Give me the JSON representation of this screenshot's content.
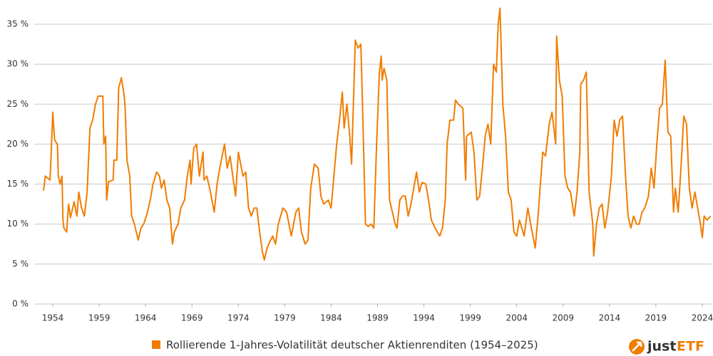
{
  "chart_data": {
    "type": "line",
    "x": [
      1953.0,
      1953.2,
      1953.7,
      1953.8,
      1954.0,
      1954.2,
      1954.5,
      1954.6,
      1954.8,
      1955.0,
      1955.1,
      1955.2,
      1955.5,
      1955.7,
      1955.9,
      1956.3,
      1956.6,
      1956.8,
      1957.1,
      1957.4,
      1957.7,
      1958.0,
      1958.3,
      1958.6,
      1958.9,
      1959.4,
      1959.5,
      1959.7,
      1959.8,
      1960.0,
      1960.5,
      1960.6,
      1960.9,
      1961.1,
      1961.4,
      1961.7,
      1961.8,
      1962.0,
      1962.3,
      1962.5,
      1962.8,
      1963.2,
      1963.5,
      1963.8,
      1964.2,
      1964.5,
      1964.8,
      1965.2,
      1965.5,
      1965.7,
      1966.0,
      1966.3,
      1966.6,
      1966.9,
      1967.1,
      1967.5,
      1967.8,
      1968.2,
      1968.5,
      1968.8,
      1968.9,
      1969.2,
      1969.5,
      1969.8,
      1970.2,
      1970.3,
      1970.6,
      1970.9,
      1971.4,
      1971.7,
      1972.0,
      1972.5,
      1972.8,
      1973.1,
      1973.4,
      1973.7,
      1974.0,
      1974.5,
      1974.8,
      1975.1,
      1975.4,
      1975.7,
      1976.0,
      1976.3,
      1976.6,
      1976.8,
      1977.1,
      1977.4,
      1977.7,
      1978.0,
      1978.3,
      1978.8,
      1979.2,
      1979.7,
      1980.2,
      1980.5,
      1980.8,
      1981.2,
      1981.5,
      1981.8,
      1982.2,
      1982.6,
      1982.9,
      1983.2,
      1983.7,
      1984.0,
      1984.3,
      1984.6,
      1984.9,
      1985.2,
      1985.4,
      1985.7,
      1986.0,
      1986.2,
      1986.5,
      1986.6,
      1986.9,
      1987.2,
      1987.4,
      1987.7,
      1988.0,
      1988.3,
      1988.6,
      1988.9,
      1989.2,
      1989.4,
      1989.5,
      1989.7,
      1990.0,
      1990.3,
      1990.6,
      1990.9,
      1991.1,
      1991.4,
      1991.7,
      1992.0,
      1992.3,
      1992.6,
      1992.9,
      1993.2,
      1993.5,
      1993.8,
      1994.2,
      1994.5,
      1994.8,
      1995.2,
      1995.7,
      1996.0,
      1996.3,
      1996.5,
      1996.8,
      1997.2,
      1997.4,
      1997.7,
      1998.2,
      1998.5,
      1998.6,
      1999.1,
      1999.4,
      1999.7,
      2000.0,
      2000.3,
      2000.6,
      2000.9,
      2001.2,
      2001.5,
      2001.8,
      2002.0,
      2002.2,
      2002.5,
      2002.8,
      2003.1,
      2003.4,
      2003.7,
      2004.0,
      2004.3,
      2004.8,
      2005.2,
      2005.5,
      2006.0,
      2006.3,
      2006.8,
      2007.1,
      2007.5,
      2007.8,
      2008.2,
      2008.3,
      2008.6,
      2008.9,
      2009.2,
      2009.5,
      2009.8,
      2010.2,
      2010.5,
      2010.8,
      2010.9,
      2011.2,
      2011.5,
      2011.8,
      2012.2,
      2012.3,
      2012.6,
      2012.9,
      2013.2,
      2013.5,
      2013.8,
      2014.2,
      2014.5,
      2014.8,
      2015.1,
      2015.4,
      2015.7,
      2016.0,
      2016.3,
      2016.6,
      2016.9,
      2017.2,
      2017.5,
      2017.8,
      2018.2,
      2018.5,
      2018.8,
      2019.1,
      2019.4,
      2019.7,
      2020.0,
      2020.3,
      2020.6,
      2020.9,
      2021.1,
      2021.4,
      2021.7,
      2022.0,
      2022.3,
      2022.6,
      2022.9,
      2023.2,
      2023.5,
      2023.8,
      2024.0,
      2024.2,
      2024.5,
      2024.9
    ],
    "series": [
      {
        "name": "Rollierende 1-Jahres-Volatilität deutscher Aktienrenditen (1954–2025)",
        "color": "#f07d00",
        "values": [
          14.2,
          16,
          15.5,
          18,
          24,
          20.5,
          20,
          16,
          15,
          16,
          10.5,
          9.5,
          9,
          12.5,
          10.8,
          12.8,
          11,
          14,
          12,
          11,
          14,
          22,
          23,
          25,
          26,
          26,
          20,
          21,
          13,
          15.3,
          15.5,
          18,
          18,
          27,
          28.3,
          26,
          24.5,
          18,
          16,
          11,
          10,
          8,
          9.5,
          10,
          11.5,
          13,
          15,
          16.5,
          16,
          14.5,
          15.5,
          13,
          12,
          7.5,
          9,
          10,
          12,
          13,
          16,
          18,
          15,
          19.5,
          20,
          16,
          19,
          15.5,
          16,
          14.5,
          11.5,
          15,
          17,
          20,
          17,
          18.5,
          16,
          13.5,
          19,
          16,
          16.5,
          12,
          11,
          12,
          12,
          9,
          6.5,
          5.5,
          7,
          7.8,
          8.5,
          7.5,
          10,
          12,
          11.5,
          8.5,
          11.5,
          12,
          9,
          7.5,
          8,
          14.5,
          17.5,
          17,
          13.5,
          12.5,
          13,
          12,
          16,
          20,
          23,
          26.5,
          22,
          25,
          21,
          17.5,
          29,
          33,
          32,
          32.5,
          24,
          10,
          9.7,
          10,
          9.5,
          20,
          29,
          31,
          28,
          29.5,
          28,
          13,
          11.5,
          10,
          9.5,
          13,
          13.5,
          13.5,
          11,
          12.5,
          14.5,
          16.5,
          14,
          15.2,
          15,
          13,
          10.5,
          9.5,
          8.5,
          9.5,
          13,
          20,
          23,
          23,
          25.5,
          25,
          24.5,
          15.5,
          21,
          21.5,
          19,
          13,
          13.5,
          17,
          21,
          22.5,
          20,
          30,
          29,
          35,
          37,
          25,
          21,
          14,
          13,
          9,
          8.5,
          10.5,
          8.5,
          12,
          10,
          7,
          11,
          19,
          18.5,
          22.5,
          24,
          20,
          33.5,
          28,
          26,
          16,
          14.5,
          14,
          11,
          14,
          19,
          27.5,
          28,
          29,
          14,
          10,
          6,
          10,
          12,
          12.5,
          9.5,
          11.5,
          16,
          23,
          21,
          23,
          23.5,
          16.5,
          11,
          9.5,
          11,
          10,
          10,
          11.5,
          12,
          13.5,
          17,
          14.5,
          20,
          24.5,
          25,
          30.5,
          21.5,
          21,
          11.5,
          14.5,
          11.5,
          17,
          23.5,
          22.5,
          14.5,
          12,
          14,
          12,
          10,
          8.3,
          11,
          10.5,
          11
        ]
      }
    ],
    "xlim": [
      1952,
      2025
    ],
    "xticks": [
      1954,
      1959,
      1964,
      1969,
      1974,
      1979,
      1984,
      1989,
      1994,
      1999,
      2004,
      2009,
      2014,
      2019,
      2024
    ],
    "ylim": [
      0,
      37
    ],
    "yticks": [
      {
        "value": 0,
        "label": "0 %"
      },
      {
        "value": 5,
        "label": "5 %"
      },
      {
        "value": 10,
        "label": "10 %"
      },
      {
        "value": 15,
        "label": "15 %"
      },
      {
        "value": 20,
        "label": "20 %"
      },
      {
        "value": 25,
        "label": "25 %"
      },
      {
        "value": 30,
        "label": "30 %"
      },
      {
        "value": 35,
        "label": "35 %"
      }
    ],
    "grid": true,
    "legend": "bottom"
  },
  "logo": {
    "left": "just",
    "right": "ETF"
  }
}
